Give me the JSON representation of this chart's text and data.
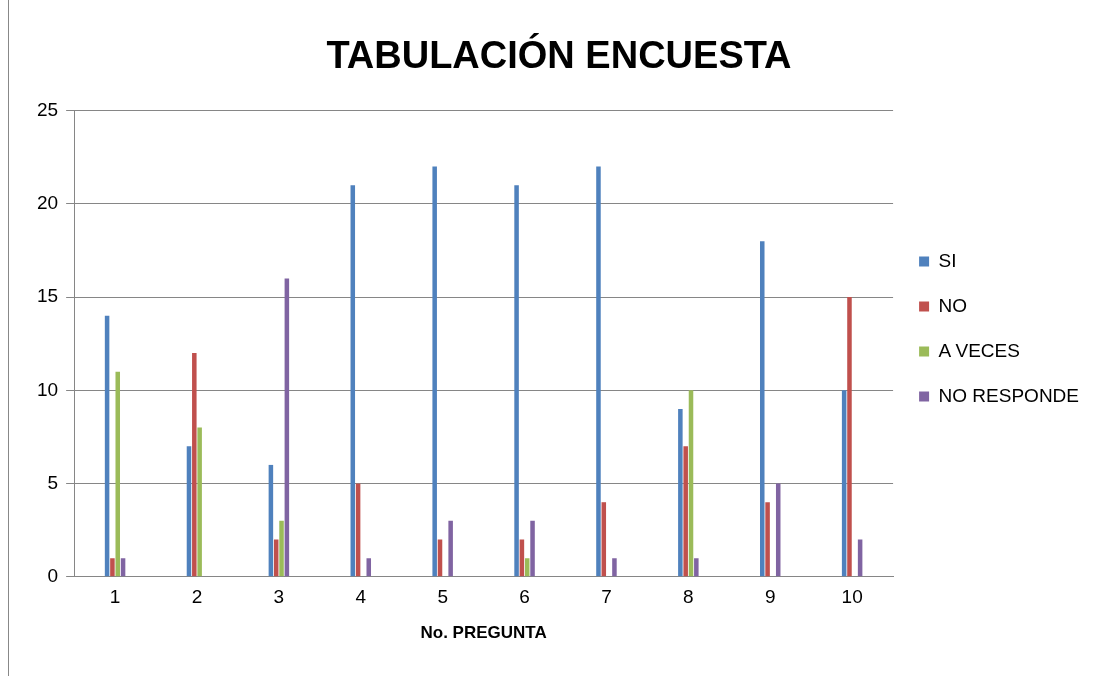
{
  "chart_data": {
    "type": "bar",
    "title": "TABULACIÓN ENCUESTA",
    "xlabel": "No. PREGUNTA",
    "categories": [
      "1",
      "2",
      "3",
      "4",
      "5",
      "6",
      "7",
      "8",
      "9",
      "10"
    ],
    "series": [
      {
        "name": "SI",
        "color": "#4f81bd",
        "values": [
          14,
          7,
          6,
          21,
          22,
          21,
          22,
          9,
          18,
          10
        ]
      },
      {
        "name": "NO",
        "color": "#c0504d",
        "values": [
          1,
          12,
          2,
          5,
          2,
          2,
          4,
          7,
          4,
          15
        ]
      },
      {
        "name": "A VECES",
        "color": "#9bbb59",
        "values": [
          11,
          8,
          3,
          0,
          0,
          1,
          0,
          10,
          0,
          0
        ]
      },
      {
        "name": "NO RESPONDE",
        "color": "#8064a2",
        "values": [
          1,
          0,
          16,
          1,
          3,
          3,
          1,
          1,
          5,
          2
        ]
      }
    ],
    "ylim": [
      0,
      25
    ],
    "yticks": [
      0,
      5,
      10,
      15,
      20,
      25
    ],
    "grid": "y",
    "legend": "right"
  }
}
